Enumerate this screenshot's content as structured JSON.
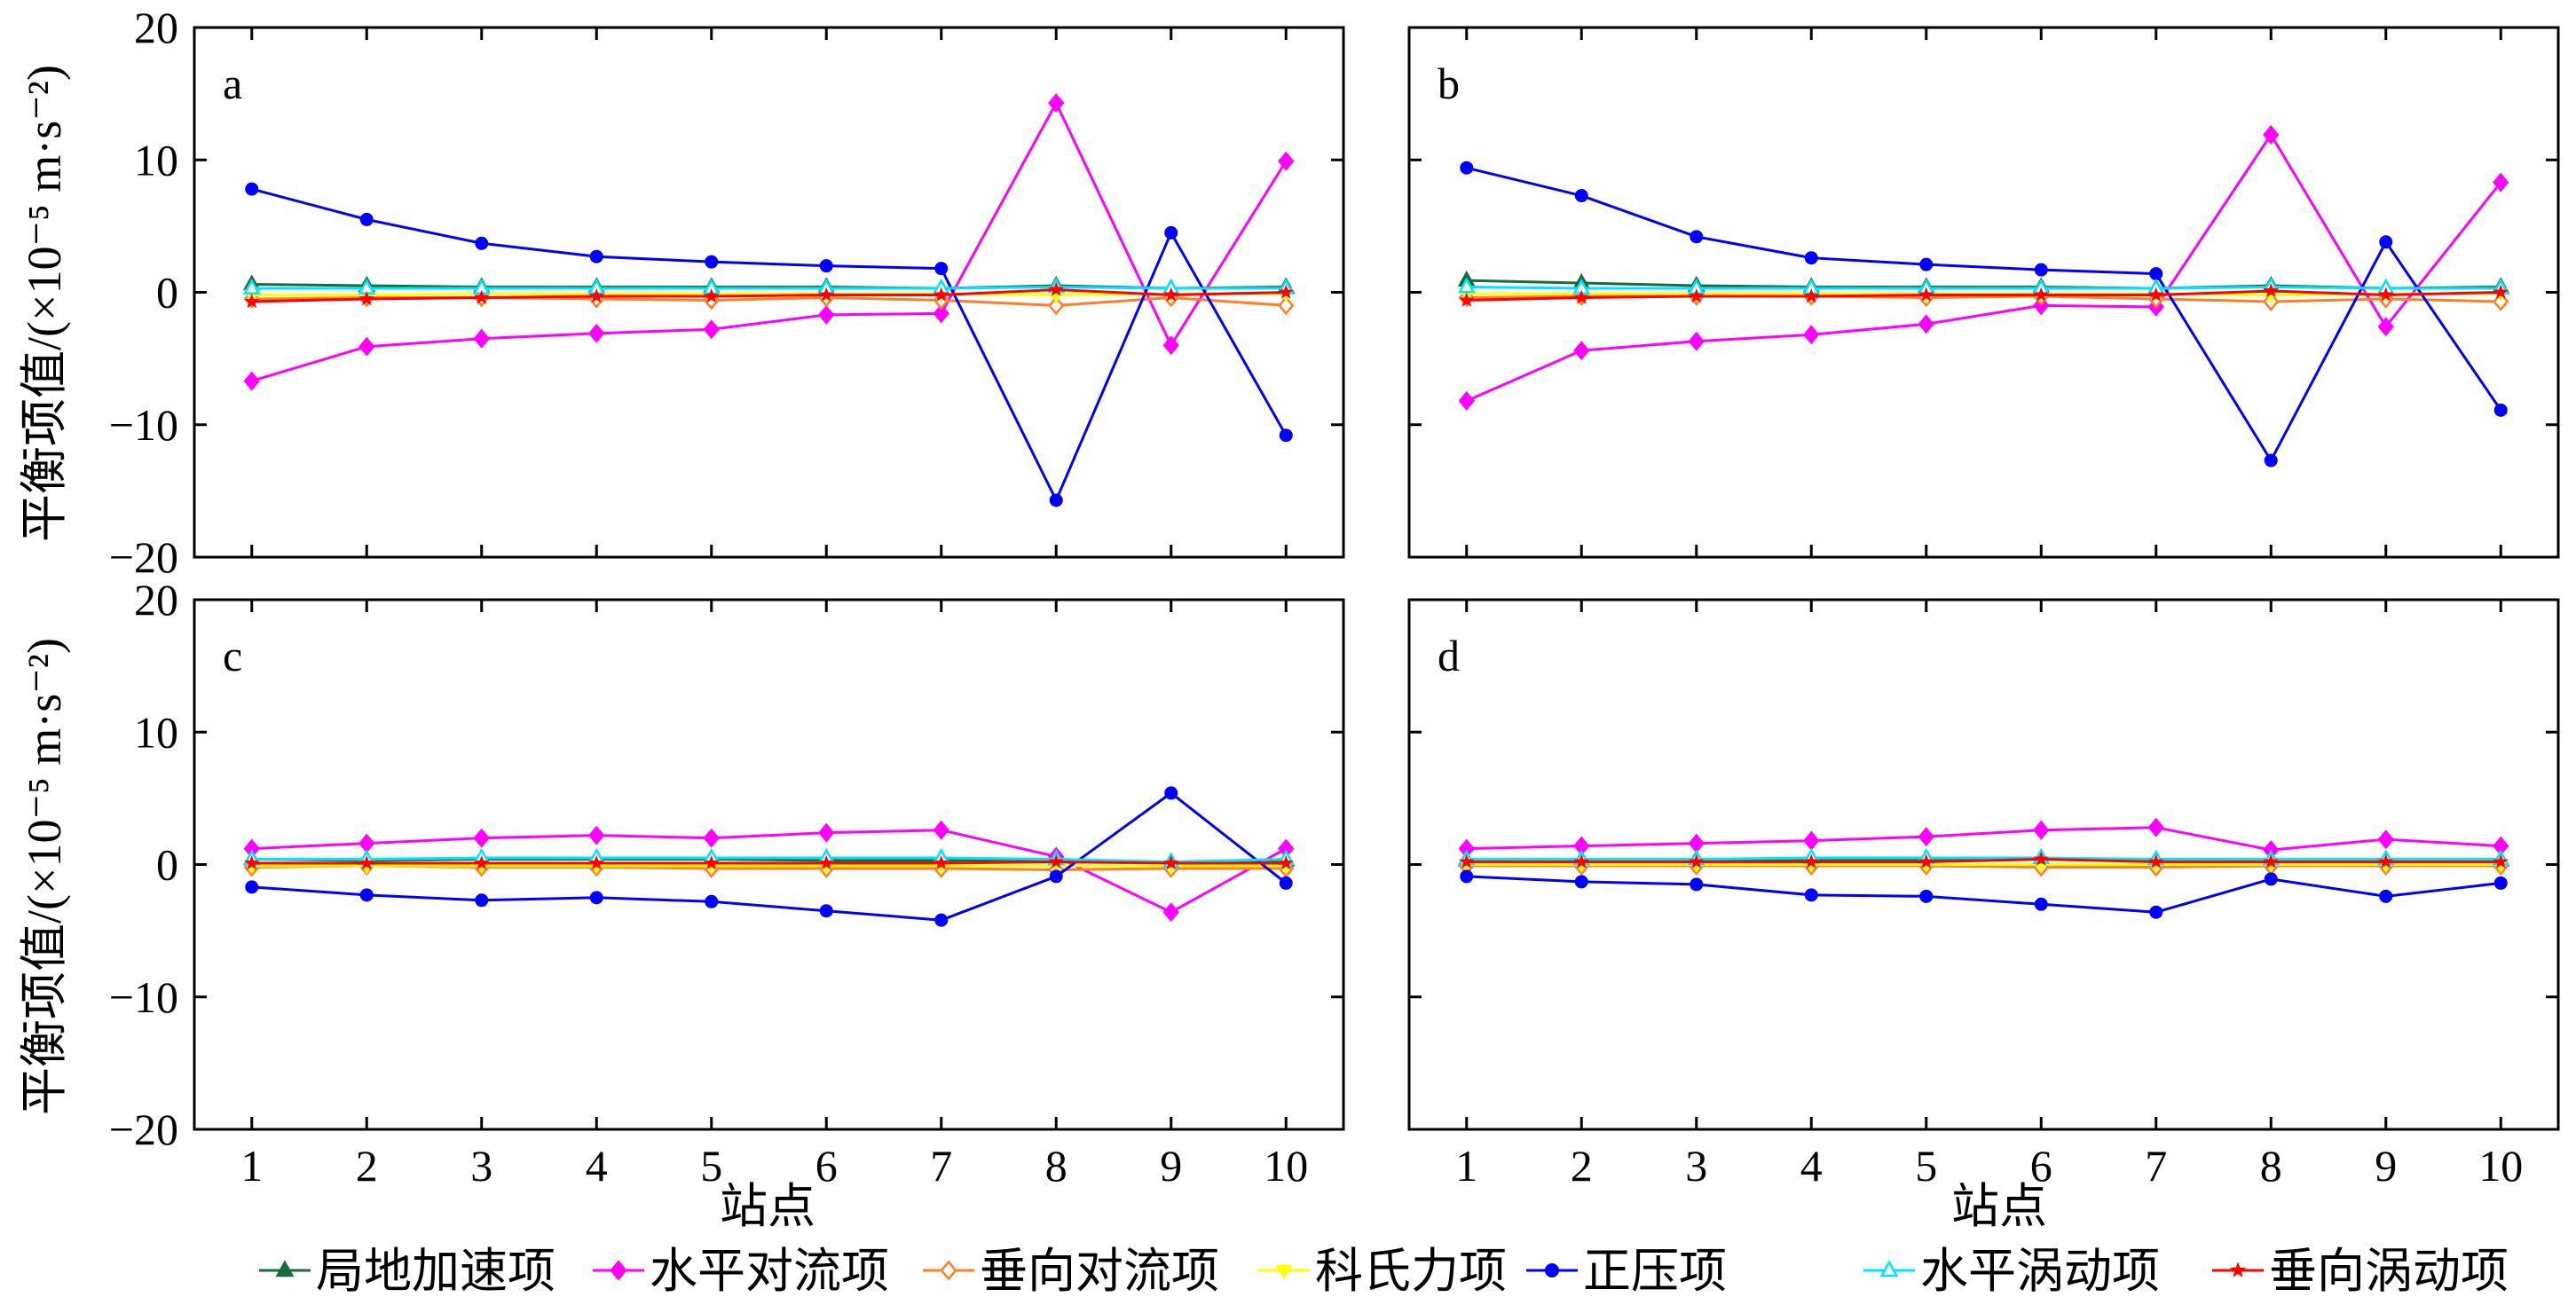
{
  "chart_data": {
    "type": "line",
    "x": [
      1,
      2,
      3,
      4,
      5,
      6,
      7,
      8,
      9,
      10
    ],
    "xlim": [
      0.5,
      10.5
    ],
    "ylim": [
      -20,
      20
    ],
    "xticks": [
      "1",
      "2",
      "3",
      "4",
      "5",
      "6",
      "7",
      "8",
      "9",
      "10"
    ],
    "yticks": [
      "20",
      "10",
      "0",
      "−10",
      "−20"
    ],
    "ylabel": "平衡项值/(×10⁻⁵ m·s⁻²)",
    "xlabel": "站点",
    "grid": false,
    "legend_position": "bottom",
    "series_styles": [
      {
        "name": "局地加速项",
        "color": "#1a6b3c",
        "marker": "triangle"
      },
      {
        "name": "水平对流项",
        "color": "#ff00ff",
        "marker": "diamond"
      },
      {
        "name": "垂向对流项",
        "color": "#ff7f27",
        "marker": "diamond-open"
      },
      {
        "name": "科氏力项",
        "color": "#ffff00",
        "marker": "triangle-down"
      },
      {
        "name": "正压项",
        "color": "#0000ff",
        "marker": "circle"
      },
      {
        "name": "水平涡动项",
        "color": "#00e5ff",
        "marker": "triangle-open"
      },
      {
        "name": "垂向涡动项",
        "color": "#ff0000",
        "marker": "star"
      }
    ],
    "panels": [
      {
        "label": "a",
        "series": [
          {
            "name": "局地加速项",
            "values": [
              0.6,
              0.5,
              0.4,
              0.4,
              0.4,
              0.4,
              0.3,
              0.5,
              0.3,
              0.4
            ]
          },
          {
            "name": "水平对流项",
            "values": [
              -6.7,
              -4.1,
              -3.5,
              -3.1,
              -2.8,
              -1.7,
              -1.6,
              14.3,
              -4.0,
              9.9
            ]
          },
          {
            "name": "垂向对流项",
            "values": [
              -0.5,
              -0.4,
              -0.4,
              -0.5,
              -0.6,
              -0.4,
              -0.6,
              -1.0,
              -0.4,
              -1.0
            ]
          },
          {
            "name": "科氏力项",
            "values": [
              -0.2,
              -0.2,
              -0.1,
              -0.1,
              -0.1,
              -0.1,
              -0.1,
              -0.2,
              -0.1,
              -0.1
            ]
          },
          {
            "name": "正压项",
            "values": [
              7.8,
              5.5,
              3.7,
              2.7,
              2.3,
              2.0,
              1.8,
              -15.7,
              4.5,
              -10.8
            ]
          },
          {
            "name": "水平涡动项",
            "values": [
              0.3,
              0.3,
              0.3,
              0.3,
              0.3,
              0.3,
              0.3,
              0.4,
              0.3,
              0.3
            ]
          },
          {
            "name": "垂向涡动项",
            "values": [
              -0.7,
              -0.5,
              -0.4,
              -0.3,
              -0.3,
              -0.2,
              -0.2,
              0.2,
              -0.2,
              0.0
            ]
          }
        ]
      },
      {
        "label": "b",
        "series": [
          {
            "name": "局地加速项",
            "values": [
              0.9,
              0.7,
              0.5,
              0.4,
              0.4,
              0.4,
              0.3,
              0.5,
              0.3,
              0.4
            ]
          },
          {
            "name": "水平对流项",
            "values": [
              -8.2,
              -4.4,
              -3.7,
              -3.2,
              -2.4,
              -1.0,
              -1.1,
              11.9,
              -2.6,
              8.3
            ]
          },
          {
            "name": "垂向对流项",
            "values": [
              -0.4,
              -0.3,
              -0.3,
              -0.3,
              -0.4,
              -0.3,
              -0.5,
              -0.7,
              -0.5,
              -0.7
            ]
          },
          {
            "name": "科氏力项",
            "values": [
              -0.1,
              -0.1,
              -0.1,
              -0.1,
              -0.1,
              -0.1,
              -0.1,
              -0.2,
              -0.1,
              -0.1
            ]
          },
          {
            "name": "正压项",
            "values": [
              9.4,
              7.3,
              4.2,
              2.6,
              2.1,
              1.7,
              1.4,
              -12.7,
              3.8,
              -8.9
            ]
          },
          {
            "name": "水平涡动项",
            "values": [
              0.4,
              0.3,
              0.3,
              0.3,
              0.3,
              0.3,
              0.3,
              0.4,
              0.3,
              0.3
            ]
          },
          {
            "name": "垂向涡动项",
            "values": [
              -0.6,
              -0.4,
              -0.3,
              -0.3,
              -0.2,
              -0.2,
              -0.2,
              0.1,
              -0.2,
              0.0
            ]
          }
        ]
      },
      {
        "label": "c",
        "series": [
          {
            "name": "局地加速项",
            "values": [
              0.4,
              0.3,
              0.4,
              0.4,
              0.4,
              0.3,
              0.3,
              0.4,
              0.1,
              0.3
            ]
          },
          {
            "name": "水平对流项",
            "values": [
              1.2,
              1.6,
              2.0,
              2.2,
              2.0,
              2.4,
              2.6,
              0.6,
              -3.6,
              1.2
            ]
          },
          {
            "name": "垂向对流项",
            "values": [
              -0.2,
              -0.1,
              -0.2,
              -0.2,
              -0.3,
              -0.3,
              -0.3,
              -0.4,
              -0.3,
              -0.3
            ]
          },
          {
            "name": "科氏力项",
            "values": [
              -0.1,
              -0.1,
              -0.1,
              -0.1,
              -0.1,
              -0.1,
              -0.1,
              -0.1,
              -0.1,
              -0.1
            ]
          },
          {
            "name": "正压项",
            "values": [
              -1.7,
              -2.3,
              -2.7,
              -2.5,
              -2.8,
              -3.5,
              -4.2,
              -0.9,
              5.4,
              -1.4
            ]
          },
          {
            "name": "水平涡动项",
            "values": [
              0.4,
              0.4,
              0.5,
              0.5,
              0.5,
              0.5,
              0.5,
              0.4,
              0.2,
              0.4
            ]
          },
          {
            "name": "垂向涡动项",
            "values": [
              0.1,
              0.1,
              0.1,
              0.1,
              0.1,
              0.1,
              0.1,
              0.2,
              0.1,
              0.1
            ]
          }
        ]
      },
      {
        "label": "d",
        "series": [
          {
            "name": "局地加速项",
            "values": [
              0.3,
              0.3,
              0.4,
              0.4,
              0.4,
              0.4,
              0.3,
              0.3,
              0.3,
              0.3
            ]
          },
          {
            "name": "水平对流项",
            "values": [
              1.2,
              1.4,
              1.6,
              1.8,
              2.1,
              2.6,
              2.8,
              1.1,
              1.9,
              1.4
            ]
          },
          {
            "name": "垂向对流项",
            "values": [
              -0.1,
              -0.1,
              -0.1,
              -0.1,
              -0.1,
              -0.2,
              -0.2,
              -0.1,
              -0.1,
              -0.1
            ]
          },
          {
            "name": "科氏力项",
            "values": [
              0.0,
              0.0,
              0.0,
              0.0,
              0.0,
              0.0,
              0.0,
              0.0,
              0.0,
              0.0
            ]
          },
          {
            "name": "正压项",
            "values": [
              -0.9,
              -1.3,
              -1.5,
              -2.3,
              -2.4,
              -3.0,
              -3.6,
              -1.1,
              -2.4,
              -1.4
            ]
          },
          {
            "name": "水平涡动项",
            "values": [
              0.4,
              0.4,
              0.4,
              0.5,
              0.5,
              0.5,
              0.4,
              0.4,
              0.4,
              0.4
            ]
          },
          {
            "name": "垂向涡动项",
            "values": [
              0.2,
              0.2,
              0.2,
              0.2,
              0.2,
              0.4,
              0.2,
              0.2,
              0.2,
              0.2
            ]
          }
        ]
      }
    ]
  }
}
